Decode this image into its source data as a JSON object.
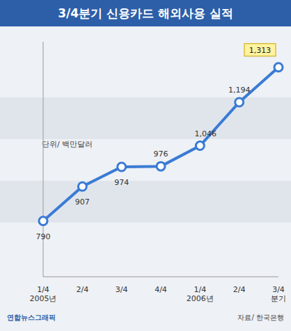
{
  "chart_data": {
    "type": "line",
    "title": "3/4분기 신용카드 해외사용 실적",
    "subtitle": "단위/ 백만달러",
    "annotations": [
      "연합뉴스그래픽",
      "자료/ 한국은행"
    ],
    "categories": [
      "1/4\n2005년",
      "2/4",
      "3/4",
      "4/4",
      "1/4\n2006년",
      "2/4",
      "3/4\n분기"
    ],
    "values": [
      790,
      907,
      974,
      976,
      1046,
      1194,
      1313
    ],
    "value_labels": [
      "790",
      "907",
      "974",
      "976",
      "1,046",
      "1,194",
      "1,313"
    ],
    "color": "#3a7bd5",
    "marker": "circle",
    "ylim": [
      600,
      1400
    ],
    "grid": false,
    "data_labels": true,
    "tick_labels": "x"
  }
}
